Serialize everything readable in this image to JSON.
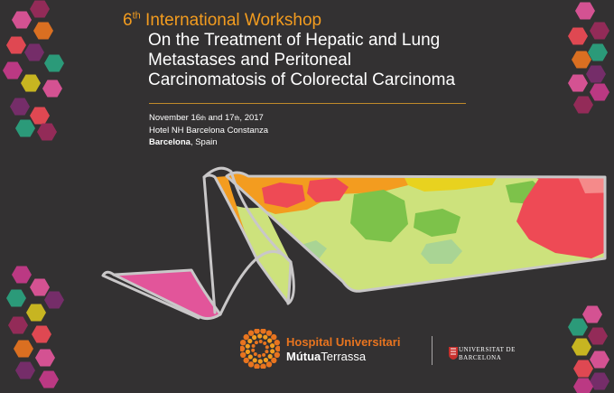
{
  "title": {
    "ordinal_number": "6",
    "ordinal_suffix": "th",
    "line1": "International Workshop",
    "line2": "On the Treatment of Hepatic and Lung",
    "line3": "Metastases and Peritoneal",
    "line4": "Carcinomatosis of Colorectal Carcinoma"
  },
  "event": {
    "date_month": "November 16",
    "date_suffix1": "th",
    "date_and": " and 17",
    "date_suffix2": "th",
    "date_year": ", 2017",
    "venue": "Hotel NH Barcelona Constanza",
    "city": "Barcelona",
    "country": ", Spain"
  },
  "logos": {
    "hospital_line1": "Hospital Universitari",
    "hospital_line2a": "Mútua",
    "hospital_line2b": "Terrassa",
    "university_line1": "UNIVERSITAT DE",
    "university_line2": "BARCELONA"
  },
  "colors": {
    "background": "#333132",
    "accent_orange": "#f39c1f",
    "hospital_orange": "#e8741f",
    "map_green": "#cde27c",
    "map_red": "#ee4a55",
    "map_pink": "#e2559a"
  }
}
